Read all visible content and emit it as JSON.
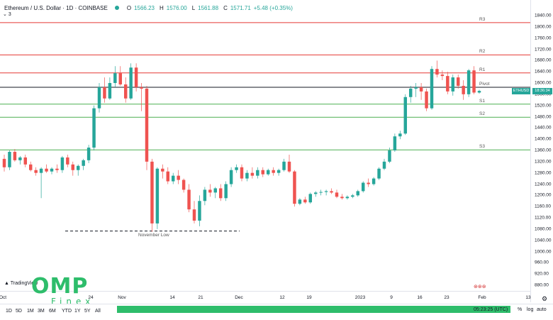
{
  "header": {
    "title": "Ethereum / U.S. Dollar · 1D · COINBASE",
    "open_label": "O",
    "open": "1566.23",
    "high_label": "H",
    "high": "1576.00",
    "low_label": "L",
    "low": "1561.88",
    "close_label": "C",
    "close": "1571.71",
    "change": "+5.48 (+0.35%)",
    "sub_indicator": "3"
  },
  "levels": {
    "r3": "R3",
    "r2": "R2",
    "r1": "R1",
    "pivot": "Pivot",
    "s1": "S1",
    "s2": "S2",
    "s3": "S3"
  },
  "annotation": {
    "november_low": "November Low"
  },
  "price_tag": {
    "symbol": "ETHUSD",
    "price": "1571.71",
    "countdown": "18:36:34"
  },
  "y_ticks": [
    "1840.00",
    "1800.00",
    "1760.00",
    "1720.00",
    "1680.00",
    "1640.00",
    "1600.00",
    "1560.00",
    "1520.00",
    "1480.00",
    "1440.00",
    "1400.00",
    "1360.00",
    "1320.00",
    "1280.00",
    "1240.00",
    "1200.00",
    "1160.00",
    "1120.00",
    "1080.00",
    "1040.00",
    "1000.00",
    "960.00",
    "920.00",
    "880.00"
  ],
  "x_ticks": [
    "Oct",
    "24",
    "Nov",
    "14",
    "21",
    "Dec",
    "12",
    "19",
    "2023",
    "9",
    "16",
    "23",
    "Feb",
    "13"
  ],
  "timeframes": [
    "1D",
    "5D",
    "1M",
    "3M",
    "6M",
    "YTD",
    "1Y",
    "5Y",
    "All"
  ],
  "footer": {
    "time": "05:23:25 (UTC)",
    "percent": "%",
    "log": "log",
    "auto": "auto"
  },
  "branding": {
    "tradingview": "TradingView",
    "logo_big": "OMP",
    "logo_small": "Finex"
  },
  "colors": {
    "up": "#26a69a",
    "down": "#ef5350",
    "resistance": "#e53935",
    "support": "#4caf50",
    "pivot": "#131722"
  },
  "chart_data": {
    "type": "candlestick",
    "x_ticks": [
      "Oct",
      "24",
      "Nov",
      "14",
      "21",
      "Dec",
      "12",
      "19",
      "2023",
      "9",
      "16",
      "23",
      "Feb",
      "13"
    ],
    "ylim": [
      880,
      1840
    ],
    "pivot_levels": {
      "R3": 1815,
      "R2": 1700,
      "R1": 1636,
      "Pivot": 1585,
      "S1": 1525,
      "S2": 1478,
      "S3": 1362
    },
    "annotation": {
      "label": "November Low",
      "value": 1073
    },
    "candles": [
      {
        "o": 1330,
        "h": 1345,
        "l": 1285,
        "c": 1300
      },
      {
        "o": 1300,
        "h": 1360,
        "l": 1290,
        "c": 1355
      },
      {
        "o": 1355,
        "h": 1365,
        "l": 1320,
        "c": 1325
      },
      {
        "o": 1325,
        "h": 1340,
        "l": 1310,
        "c": 1335
      },
      {
        "o": 1335,
        "h": 1345,
        "l": 1300,
        "c": 1310
      },
      {
        "o": 1310,
        "h": 1320,
        "l": 1285,
        "c": 1290
      },
      {
        "o": 1290,
        "h": 1300,
        "l": 1270,
        "c": 1280
      },
      {
        "o": 1280,
        "h": 1300,
        "l": 1190,
        "c": 1295
      },
      {
        "o": 1295,
        "h": 1310,
        "l": 1280,
        "c": 1285
      },
      {
        "o": 1285,
        "h": 1300,
        "l": 1275,
        "c": 1295
      },
      {
        "o": 1295,
        "h": 1310,
        "l": 1280,
        "c": 1290
      },
      {
        "o": 1290,
        "h": 1340,
        "l": 1280,
        "c": 1335
      },
      {
        "o": 1335,
        "h": 1345,
        "l": 1300,
        "c": 1310
      },
      {
        "o": 1310,
        "h": 1320,
        "l": 1270,
        "c": 1290
      },
      {
        "o": 1290,
        "h": 1310,
        "l": 1270,
        "c": 1305
      },
      {
        "o": 1305,
        "h": 1330,
        "l": 1290,
        "c": 1325
      },
      {
        "o": 1325,
        "h": 1380,
        "l": 1315,
        "c": 1370
      },
      {
        "o": 1370,
        "h": 1520,
        "l": 1360,
        "c": 1510
      },
      {
        "o": 1510,
        "h": 1600,
        "l": 1495,
        "c": 1585
      },
      {
        "o": 1585,
        "h": 1620,
        "l": 1530,
        "c": 1545
      },
      {
        "o": 1545,
        "h": 1620,
        "l": 1540,
        "c": 1600
      },
      {
        "o": 1600,
        "h": 1660,
        "l": 1585,
        "c": 1635
      },
      {
        "o": 1635,
        "h": 1660,
        "l": 1590,
        "c": 1595
      },
      {
        "o": 1595,
        "h": 1620,
        "l": 1530,
        "c": 1545
      },
      {
        "o": 1545,
        "h": 1670,
        "l": 1540,
        "c": 1655
      },
      {
        "o": 1655,
        "h": 1670,
        "l": 1570,
        "c": 1585
      },
      {
        "o": 1585,
        "h": 1600,
        "l": 1500,
        "c": 1580
      },
      {
        "o": 1580,
        "h": 1590,
        "l": 1290,
        "c": 1320
      },
      {
        "o": 1320,
        "h": 1330,
        "l": 1070,
        "c": 1100
      },
      {
        "o": 1100,
        "h": 1300,
        "l": 1080,
        "c": 1295
      },
      {
        "o": 1295,
        "h": 1310,
        "l": 1260,
        "c": 1285
      },
      {
        "o": 1285,
        "h": 1300,
        "l": 1240,
        "c": 1250
      },
      {
        "o": 1250,
        "h": 1280,
        "l": 1240,
        "c": 1270
      },
      {
        "o": 1270,
        "h": 1290,
        "l": 1240,
        "c": 1255
      },
      {
        "o": 1255,
        "h": 1260,
        "l": 1210,
        "c": 1220
      },
      {
        "o": 1220,
        "h": 1240,
        "l": 1140,
        "c": 1150
      },
      {
        "o": 1150,
        "h": 1180,
        "l": 1100,
        "c": 1110
      },
      {
        "o": 1110,
        "h": 1200,
        "l": 1090,
        "c": 1180
      },
      {
        "o": 1180,
        "h": 1230,
        "l": 1165,
        "c": 1220
      },
      {
        "o": 1220,
        "h": 1240,
        "l": 1195,
        "c": 1210
      },
      {
        "o": 1210,
        "h": 1230,
        "l": 1190,
        "c": 1225
      },
      {
        "o": 1225,
        "h": 1240,
        "l": 1180,
        "c": 1190
      },
      {
        "o": 1190,
        "h": 1250,
        "l": 1180,
        "c": 1240
      },
      {
        "o": 1240,
        "h": 1300,
        "l": 1230,
        "c": 1290
      },
      {
        "o": 1290,
        "h": 1310,
        "l": 1280,
        "c": 1300
      },
      {
        "o": 1300,
        "h": 1310,
        "l": 1250,
        "c": 1260
      },
      {
        "o": 1260,
        "h": 1290,
        "l": 1250,
        "c": 1280
      },
      {
        "o": 1280,
        "h": 1300,
        "l": 1260,
        "c": 1270
      },
      {
        "o": 1270,
        "h": 1300,
        "l": 1260,
        "c": 1290
      },
      {
        "o": 1290,
        "h": 1300,
        "l": 1265,
        "c": 1275
      },
      {
        "o": 1275,
        "h": 1295,
        "l": 1270,
        "c": 1290
      },
      {
        "o": 1290,
        "h": 1300,
        "l": 1270,
        "c": 1280
      },
      {
        "o": 1280,
        "h": 1295,
        "l": 1270,
        "c": 1290
      },
      {
        "o": 1290,
        "h": 1330,
        "l": 1285,
        "c": 1320
      },
      {
        "o": 1320,
        "h": 1345,
        "l": 1280,
        "c": 1285
      },
      {
        "o": 1285,
        "h": 1290,
        "l": 1160,
        "c": 1170
      },
      {
        "o": 1170,
        "h": 1190,
        "l": 1165,
        "c": 1185
      },
      {
        "o": 1185,
        "h": 1195,
        "l": 1170,
        "c": 1175
      },
      {
        "o": 1175,
        "h": 1210,
        "l": 1170,
        "c": 1205
      },
      {
        "o": 1205,
        "h": 1215,
        "l": 1195,
        "c": 1210
      },
      {
        "o": 1210,
        "h": 1220,
        "l": 1200,
        "c": 1212
      },
      {
        "o": 1212,
        "h": 1220,
        "l": 1200,
        "c": 1215
      },
      {
        "o": 1215,
        "h": 1225,
        "l": 1205,
        "c": 1210
      },
      {
        "o": 1210,
        "h": 1220,
        "l": 1190,
        "c": 1195
      },
      {
        "o": 1195,
        "h": 1205,
        "l": 1185,
        "c": 1190
      },
      {
        "o": 1190,
        "h": 1200,
        "l": 1185,
        "c": 1195
      },
      {
        "o": 1195,
        "h": 1205,
        "l": 1190,
        "c": 1200
      },
      {
        "o": 1200,
        "h": 1220,
        "l": 1195,
        "c": 1215
      },
      {
        "o": 1215,
        "h": 1250,
        "l": 1210,
        "c": 1245
      },
      {
        "o": 1245,
        "h": 1260,
        "l": 1230,
        "c": 1240
      },
      {
        "o": 1240,
        "h": 1265,
        "l": 1235,
        "c": 1260
      },
      {
        "o": 1260,
        "h": 1300,
        "l": 1255,
        "c": 1295
      },
      {
        "o": 1295,
        "h": 1330,
        "l": 1290,
        "c": 1320
      },
      {
        "o": 1320,
        "h": 1370,
        "l": 1315,
        "c": 1360
      },
      {
        "o": 1360,
        "h": 1420,
        "l": 1355,
        "c": 1410
      },
      {
        "o": 1410,
        "h": 1430,
        "l": 1400,
        "c": 1420
      },
      {
        "o": 1420,
        "h": 1560,
        "l": 1415,
        "c": 1550
      },
      {
        "o": 1550,
        "h": 1590,
        "l": 1530,
        "c": 1580
      },
      {
        "o": 1580,
        "h": 1600,
        "l": 1550,
        "c": 1585
      },
      {
        "o": 1585,
        "h": 1600,
        "l": 1540,
        "c": 1570
      },
      {
        "o": 1570,
        "h": 1580,
        "l": 1500,
        "c": 1510
      },
      {
        "o": 1510,
        "h": 1660,
        "l": 1505,
        "c": 1650
      },
      {
        "o": 1650,
        "h": 1680,
        "l": 1620,
        "c": 1630
      },
      {
        "o": 1630,
        "h": 1645,
        "l": 1610,
        "c": 1625
      },
      {
        "o": 1625,
        "h": 1640,
        "l": 1560,
        "c": 1570
      },
      {
        "o": 1570,
        "h": 1630,
        "l": 1555,
        "c": 1620
      },
      {
        "o": 1620,
        "h": 1630,
        "l": 1580,
        "c": 1590
      },
      {
        "o": 1590,
        "h": 1610,
        "l": 1540,
        "c": 1560
      },
      {
        "o": 1560,
        "h": 1650,
        "l": 1550,
        "c": 1645
      },
      {
        "o": 1645,
        "h": 1660,
        "l": 1560,
        "c": 1566
      },
      {
        "o": 1566,
        "h": 1576,
        "l": 1562,
        "c": 1572
      }
    ]
  }
}
